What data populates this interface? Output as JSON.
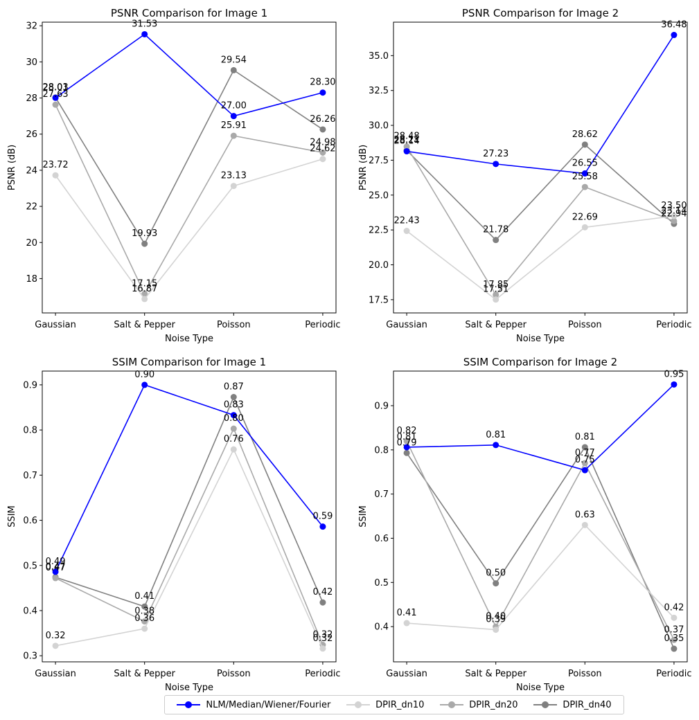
{
  "chart_data": [
    {
      "type": "line",
      "title": "PSNR Comparison for Image 1",
      "xlabel": "Noise Type",
      "ylabel": "PSNR (dB)",
      "categories": [
        "Gaussian",
        "Salt & Pepper",
        "Poisson",
        "Periodic"
      ],
      "ylim": [
        16.1,
        32.2
      ],
      "yticks": [
        18,
        20,
        22,
        24,
        26,
        28,
        30,
        32
      ],
      "ytick_labels": [
        "18",
        "20",
        "22",
        "24",
        "26",
        "28",
        "30",
        "32"
      ],
      "series": [
        {
          "name": "NLM/Median/Wiener/Fourier",
          "color": "#0000ff",
          "values": [
            28.01,
            31.53,
            27.0,
            28.3
          ],
          "labels": [
            "28.01",
            "31.53",
            "27.00",
            "28.30"
          ]
        },
        {
          "name": "DPIR_dn10",
          "color": "#d3d3d3",
          "values": [
            23.72,
            16.87,
            23.13,
            24.62
          ],
          "labels": [
            "23.72",
            "16.87",
            "23.13",
            "24.62"
          ]
        },
        {
          "name": "DPIR_dn20",
          "color": "#a9a9a9",
          "values": [
            27.63,
            17.15,
            25.91,
            24.98
          ],
          "labels": [
            "27.63",
            "17.15",
            "25.91",
            "24.98"
          ]
        },
        {
          "name": "DPIR_dn40",
          "color": "#808080",
          "values": [
            28.03,
            19.93,
            29.54,
            26.26
          ],
          "labels": [
            "28.03",
            "19.93",
            "29.54",
            "26.26"
          ]
        }
      ]
    },
    {
      "type": "line",
      "title": "PSNR Comparison for Image 2",
      "xlabel": "Noise Type",
      "ylabel": "PSNR (dB)",
      "categories": [
        "Gaussian",
        "Salt & Pepper",
        "Poisson",
        "Periodic"
      ],
      "ylim": [
        16.55,
        37.4
      ],
      "yticks": [
        17.5,
        20.0,
        22.5,
        25.0,
        27.5,
        30.0,
        32.5,
        35.0
      ],
      "ytick_labels": [
        "17.5",
        "20.0",
        "22.5",
        "25.0",
        "27.5",
        "30.0",
        "32.5",
        "35.0"
      ],
      "series": [
        {
          "name": "NLM/Median/Wiener/Fourier",
          "color": "#0000ff",
          "values": [
            28.14,
            27.23,
            26.55,
            36.48
          ],
          "labels": [
            "28.14",
            "27.23",
            "26.55",
            "36.48"
          ]
        },
        {
          "name": "DPIR_dn10",
          "color": "#d3d3d3",
          "values": [
            22.43,
            17.51,
            22.69,
            23.5
          ],
          "labels": [
            "22.43",
            "17.51",
            "22.69",
            "23.50"
          ]
        },
        {
          "name": "DPIR_dn20",
          "color": "#a9a9a9",
          "values": [
            28.48,
            17.85,
            25.58,
            23.14
          ],
          "labels": [
            "28.48",
            "17.85",
            "25.58",
            "23.14"
          ]
        },
        {
          "name": "DPIR_dn40",
          "color": "#808080",
          "values": [
            28.21,
            21.78,
            28.62,
            22.94
          ],
          "labels": [
            "28.21",
            "21.78",
            "28.62",
            "22.94"
          ]
        }
      ]
    },
    {
      "type": "line",
      "title": "SSIM Comparison for Image 1",
      "xlabel": "Noise Type",
      "ylabel": "SSIM",
      "categories": [
        "Gaussian",
        "Salt & Pepper",
        "Poisson",
        "Periodic"
      ],
      "ylim": [
        0.2865,
        0.9305
      ],
      "yticks": [
        0.3,
        0.4,
        0.5,
        0.6,
        0.7,
        0.8,
        0.9
      ],
      "ytick_labels": [
        "0.3",
        "0.4",
        "0.5",
        "0.6",
        "0.7",
        "0.8",
        "0.9"
      ],
      "series": [
        {
          "name": "NLM/Median/Wiener/Fourier",
          "color": "#0000ff",
          "values": [
            0.486,
            0.9,
            0.833,
            0.586
          ],
          "labels": [
            "0.49",
            "0.90",
            "0.83",
            "0.59"
          ]
        },
        {
          "name": "DPIR_dn10",
          "color": "#d3d3d3",
          "values": [
            0.322,
            0.36,
            0.757,
            0.316
          ],
          "labels": [
            "0.32",
            "0.36",
            "0.76",
            "0.32"
          ]
        },
        {
          "name": "DPIR_dn20",
          "color": "#a9a9a9",
          "values": [
            0.472,
            0.376,
            0.803,
            0.324
          ],
          "labels": [
            "0.47",
            "0.38",
            "0.80",
            "0.32"
          ]
        },
        {
          "name": "DPIR_dn40",
          "color": "#808080",
          "values": [
            0.474,
            0.409,
            0.873,
            0.418
          ],
          "labels": [
            "0.47",
            "0.41",
            "0.87",
            "0.42"
          ]
        }
      ]
    },
    {
      "type": "line",
      "title": "SSIM Comparison for Image 2",
      "xlabel": "Noise Type",
      "ylabel": "SSIM",
      "categories": [
        "Gaussian",
        "Salt & Pepper",
        "Poisson",
        "Periodic"
      ],
      "ylim": [
        0.3203,
        0.9783
      ],
      "yticks": [
        0.4,
        0.5,
        0.6,
        0.7,
        0.8,
        0.9
      ],
      "ytick_labels": [
        "0.4",
        "0.5",
        "0.6",
        "0.7",
        "0.8",
        "0.9"
      ],
      "series": [
        {
          "name": "NLM/Median/Wiener/Fourier",
          "color": "#0000ff",
          "values": [
            0.806,
            0.811,
            0.754,
            0.948
          ],
          "labels": [
            "0.81",
            "0.81",
            "0.75",
            "0.95"
          ]
        },
        {
          "name": "DPIR_dn10",
          "color": "#d3d3d3",
          "values": [
            0.408,
            0.393,
            0.63,
            0.42
          ],
          "labels": [
            "0.41",
            "0.39",
            "0.63",
            "0.42"
          ]
        },
        {
          "name": "DPIR_dn20",
          "color": "#a9a9a9",
          "values": [
            0.82,
            0.4,
            0.77,
            0.37
          ],
          "labels": [
            "0.82",
            "0.40",
            "0.77",
            "0.37"
          ]
        },
        {
          "name": "DPIR_dn40",
          "color": "#808080",
          "values": [
            0.793,
            0.498,
            0.806,
            0.35
          ],
          "labels": [
            "0.79",
            "0.50",
            "0.81",
            "0.35"
          ]
        }
      ]
    }
  ],
  "legend": {
    "placement": "bottom-center",
    "items": [
      {
        "label": "NLM/Median/Wiener/Fourier",
        "color": "#0000ff"
      },
      {
        "label": "DPIR_dn10",
        "color": "#d3d3d3"
      },
      {
        "label": "DPIR_dn20",
        "color": "#a9a9a9"
      },
      {
        "label": "DPIR_dn40",
        "color": "#808080"
      }
    ]
  }
}
